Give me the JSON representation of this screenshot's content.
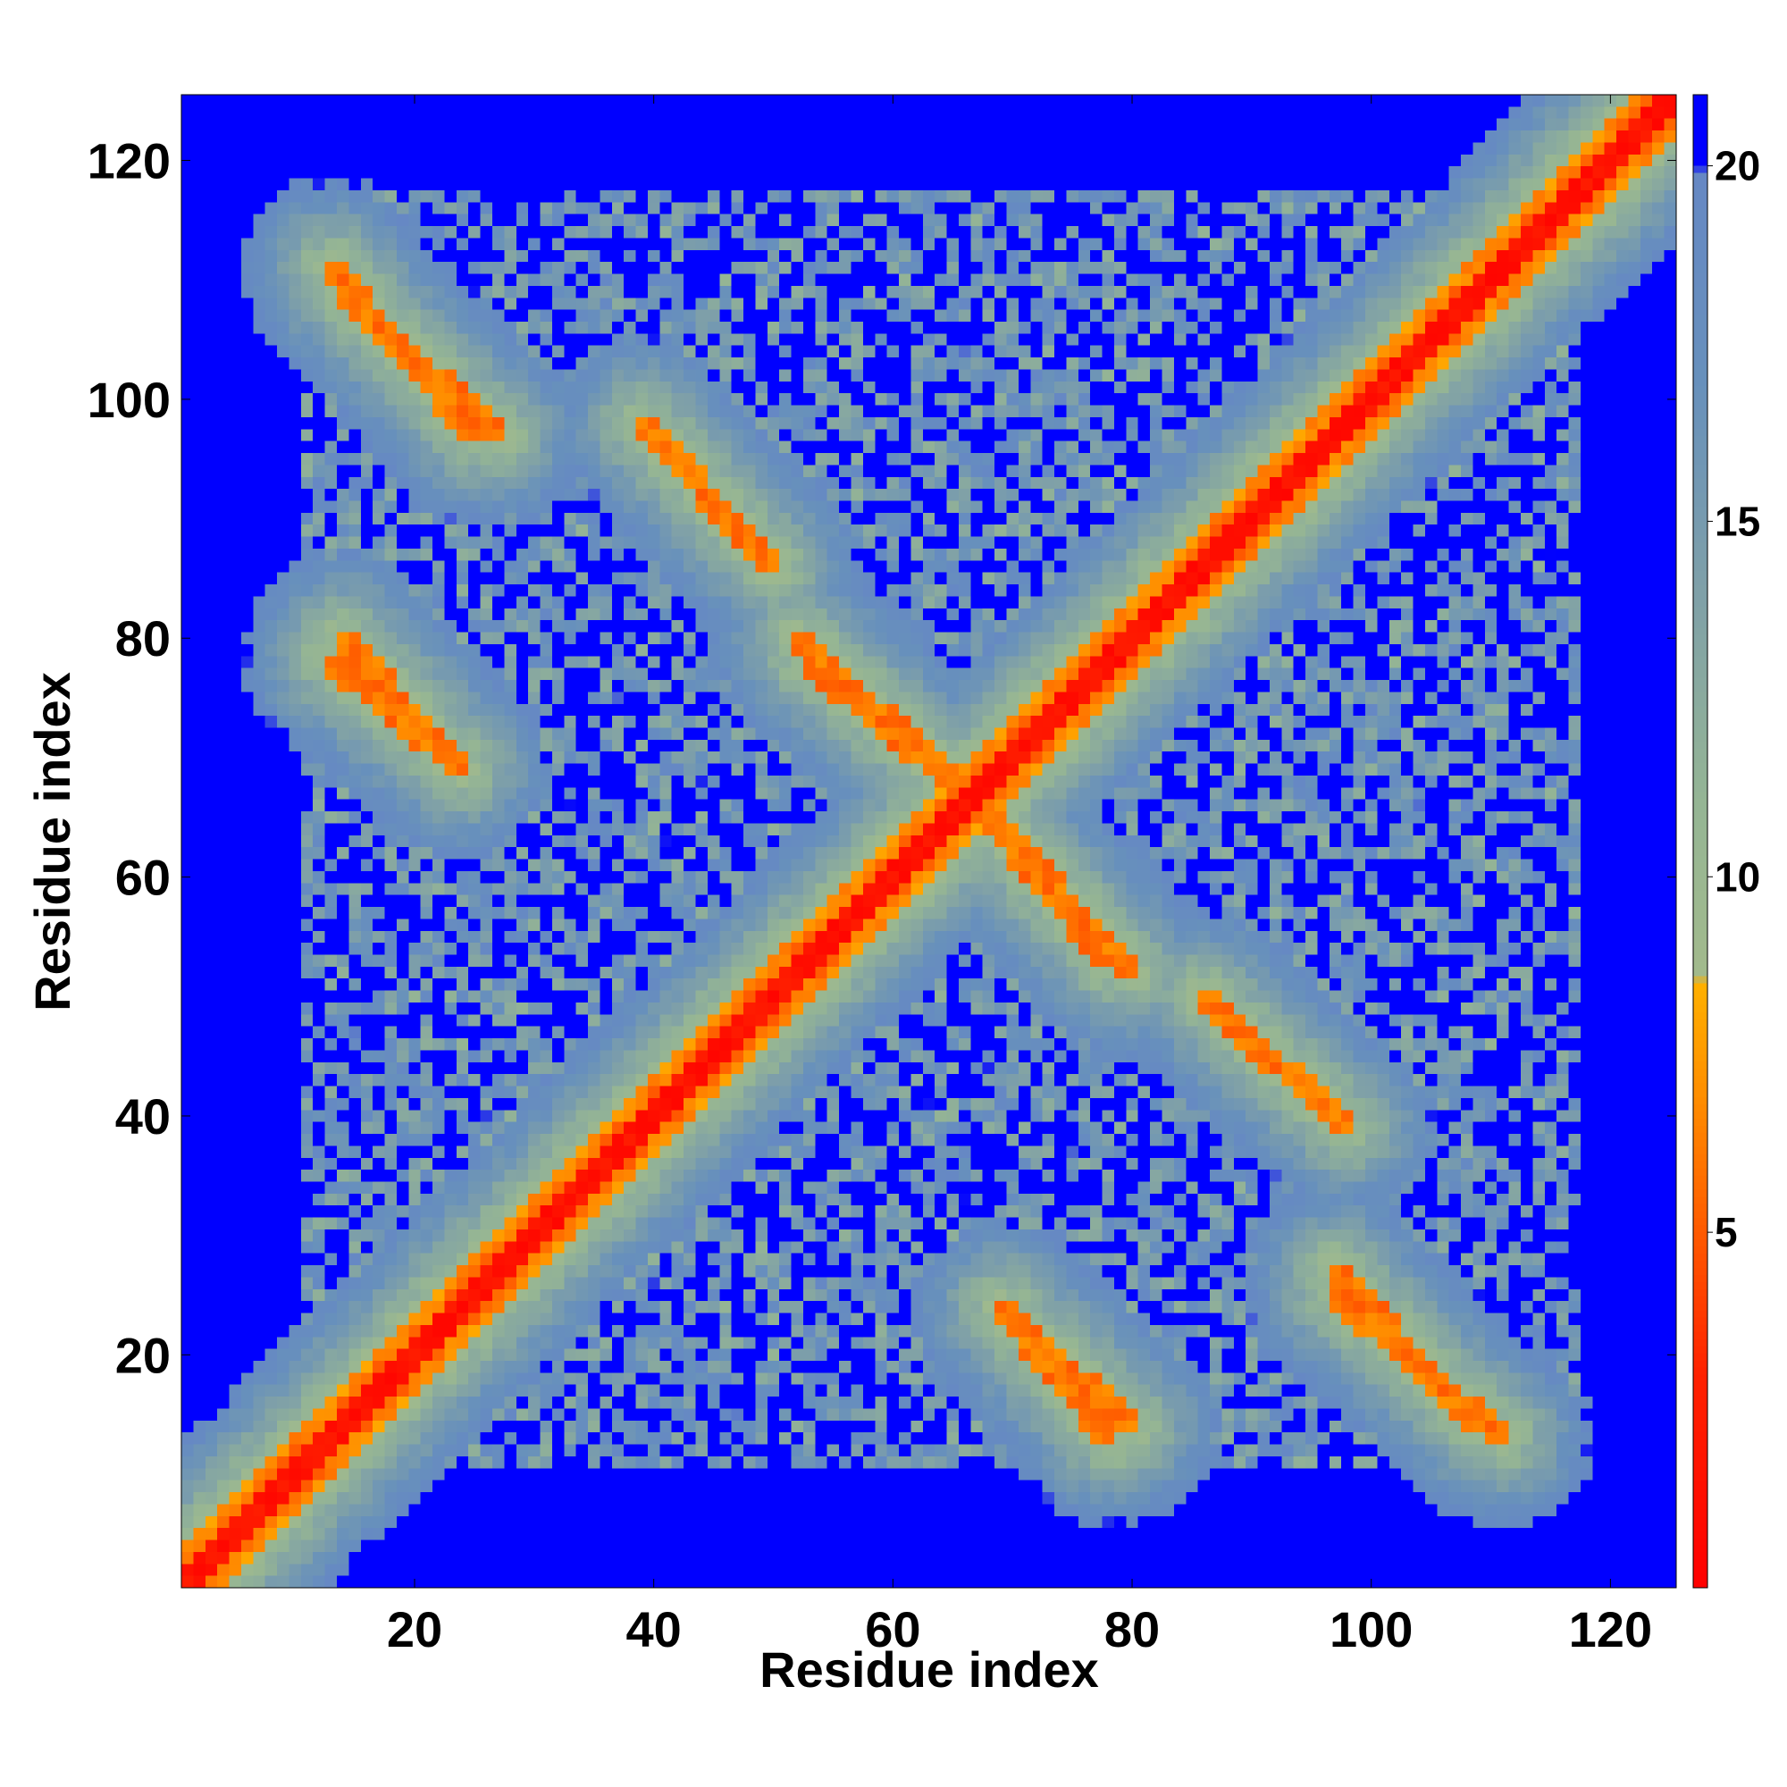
{
  "chart_data": {
    "type": "heatmap",
    "title": "",
    "xlabel": "Residue index",
    "ylabel": "Residue index",
    "xlim": [
      1,
      125
    ],
    "ylim": [
      1,
      125
    ],
    "x_ticks": [
      20,
      40,
      60,
      80,
      100,
      120
    ],
    "y_ticks": [
      20,
      40,
      60,
      80,
      100,
      120
    ],
    "x_tick_labels": [
      "20",
      "40",
      "60",
      "80",
      "100",
      "120"
    ],
    "y_tick_labels": [
      "20",
      "40",
      "60",
      "80",
      "100",
      "120"
    ],
    "n_residues": 125,
    "symmetric": true,
    "colorbar": {
      "ticks": [
        5,
        10,
        15,
        20
      ],
      "tick_labels": [
        "5",
        "10",
        "15",
        "20"
      ],
      "range": [
        0,
        21
      ],
      "stops": [
        {
          "value": 0,
          "color": "#ff0000"
        },
        {
          "value": 3,
          "color": "#ff2200"
        },
        {
          "value": 5,
          "color": "#ff5a00"
        },
        {
          "value": 7,
          "color": "#ff9000"
        },
        {
          "value": 8.5,
          "color": "#ffb000"
        },
        {
          "value": 8.6,
          "color": "#a2ba8c"
        },
        {
          "value": 11,
          "color": "#95b594"
        },
        {
          "value": 14,
          "color": "#7fa0a8"
        },
        {
          "value": 17,
          "color": "#6790bc"
        },
        {
          "value": 19.9,
          "color": "#6688c4"
        },
        {
          "value": 20.0,
          "color": "#0000ff"
        }
      ]
    },
    "background_color": "#0000ff",
    "diagonal_color": "#ff0000",
    "contact_bands": [
      {
        "from": [
          1,
          1
        ],
        "to": [
          125,
          125
        ],
        "kind": "diagonal"
      },
      {
        "from": [
          13,
          111
        ],
        "to": [
          25,
          97
        ],
        "kind": "antiparallel"
      },
      {
        "from": [
          13,
          78
        ],
        "to": [
          24,
          69
        ],
        "kind": "antiparallel"
      },
      {
        "from": [
          53,
          78
        ],
        "to": [
          66,
          67
        ],
        "kind": "antiparallel"
      },
      {
        "from": [
          69,
          64
        ],
        "to": [
          80,
          52
        ],
        "kind": "antiparallel"
      },
      {
        "from": [
          69,
          24
        ],
        "to": [
          80,
          14
        ],
        "kind": "antiparallel"
      },
      {
        "from": [
          97,
          27
        ],
        "to": [
          109,
          14
        ],
        "kind": "antiparallel"
      },
      {
        "from": [
          97,
          25
        ],
        "to": [
          111,
          13
        ],
        "kind": "antiparallel"
      },
      {
        "from": [
          40,
          97
        ],
        "to": [
          50,
          86
        ],
        "kind": "antiparallel"
      },
      {
        "from": [
          88,
          48
        ],
        "to": [
          98,
          39
        ],
        "kind": "antiparallel"
      }
    ]
  }
}
